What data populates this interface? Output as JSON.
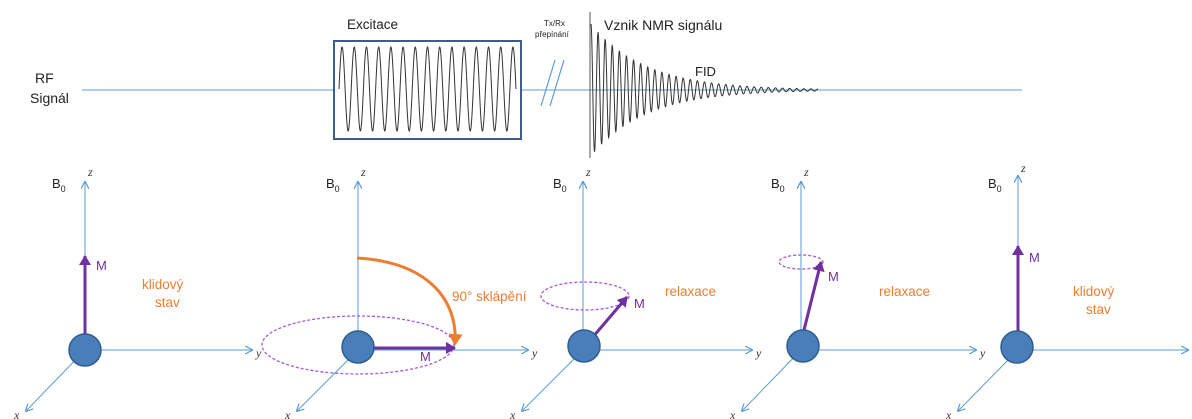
{
  "rf": {
    "label_line1": "RF",
    "label_line2": "Signál",
    "excitation_label": "Excitace",
    "switch_label_line1": "Tx/Rx",
    "switch_label_line2": "přepínání",
    "signal_title": "Vznik NMR signálu",
    "fid_label": "FID"
  },
  "panels": [
    {
      "b0": "B",
      "b0_sub": "0",
      "z": "z",
      "y": "y",
      "x": "x",
      "m": "M",
      "state_line1": "klidový",
      "state_line2": "stav"
    },
    {
      "b0": "B",
      "b0_sub": "0",
      "z": "z",
      "y": "y",
      "x": "x",
      "m": "M",
      "state_line1": "90° sklápění"
    },
    {
      "b0": "B",
      "b0_sub": "0",
      "z": "z",
      "y": "y",
      "x": "x",
      "m": "M",
      "state_line1": "relaxace"
    },
    {
      "b0": "B",
      "b0_sub": "0",
      "z": "z",
      "y": "y",
      "x": "x",
      "m": "M",
      "state_line1": "relaxace"
    },
    {
      "b0": "B",
      "b0_sub": "0",
      "z": "z",
      "y": "y",
      "x": "x",
      "m": "",
      "state_line1": "klidový",
      "state_line2": "stav"
    }
  ],
  "colors": {
    "axis": "#5b9bd5",
    "magnetization": "#7030a0",
    "label_orange": "#ed7d31",
    "nucleus": "#4a7ebb"
  }
}
